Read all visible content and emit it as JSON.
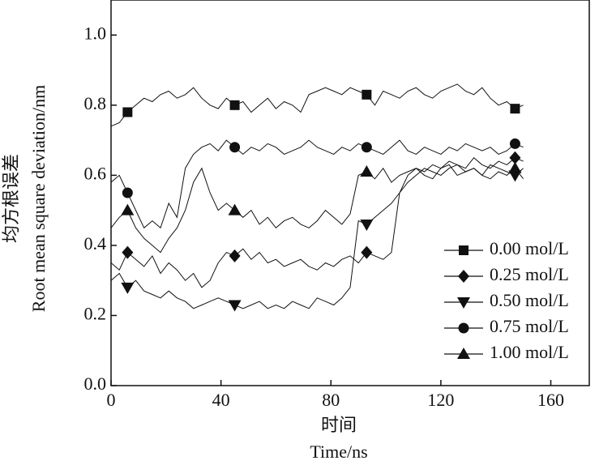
{
  "chart_data": {
    "type": "line",
    "x_label_cn": "时间",
    "x_label": "Time/ns",
    "y_label_cn": "均方根误差",
    "y_label": "Root mean square deviation/nm",
    "x": [
      0,
      3,
      6,
      9,
      12,
      15,
      18,
      21,
      24,
      27,
      30,
      33,
      36,
      39,
      42,
      45,
      48,
      51,
      54,
      57,
      60,
      63,
      66,
      69,
      72,
      75,
      78,
      81,
      84,
      87,
      90,
      93,
      96,
      99,
      102,
      105,
      108,
      111,
      114,
      117,
      120,
      123,
      126,
      129,
      132,
      135,
      138,
      141,
      144,
      147,
      150
    ],
    "xlim": [
      0,
      174
    ],
    "xticks": [
      0,
      40,
      80,
      120,
      160
    ],
    "ylim": [
      0,
      1.1
    ],
    "yticks": [
      {
        "value": 0,
        "label": "0.0"
      },
      {
        "value": 0.2,
        "label": "0.2"
      },
      {
        "value": 0.4,
        "label": "0.4"
      },
      {
        "value": 0.6,
        "label": "0.6"
      },
      {
        "value": 0.8,
        "label": "0.8"
      },
      {
        "value": 1.0,
        "label": "1.0"
      }
    ],
    "legend": "lower right",
    "series": [
      {
        "name": "0.00 mol/L",
        "color": "#111111",
        "marker": "square",
        "values": [
          0.74,
          0.75,
          0.78,
          0.8,
          0.82,
          0.81,
          0.83,
          0.84,
          0.82,
          0.83,
          0.85,
          0.82,
          0.8,
          0.79,
          0.82,
          0.8,
          0.81,
          0.78,
          0.8,
          0.82,
          0.79,
          0.81,
          0.8,
          0.78,
          0.83,
          0.84,
          0.85,
          0.84,
          0.83,
          0.85,
          0.84,
          0.83,
          0.8,
          0.84,
          0.83,
          0.82,
          0.84,
          0.85,
          0.83,
          0.82,
          0.84,
          0.85,
          0.86,
          0.84,
          0.83,
          0.85,
          0.82,
          0.8,
          0.81,
          0.79,
          0.8
        ]
      },
      {
        "name": "0.25 mol/L",
        "color": "#111111",
        "marker": "diamond",
        "values": [
          0.35,
          0.33,
          0.38,
          0.36,
          0.34,
          0.37,
          0.32,
          0.35,
          0.33,
          0.3,
          0.32,
          0.28,
          0.3,
          0.35,
          0.38,
          0.37,
          0.39,
          0.36,
          0.38,
          0.35,
          0.36,
          0.34,
          0.35,
          0.36,
          0.34,
          0.33,
          0.35,
          0.34,
          0.36,
          0.37,
          0.35,
          0.38,
          0.37,
          0.36,
          0.38,
          0.55,
          0.6,
          0.62,
          0.61,
          0.63,
          0.62,
          0.64,
          0.63,
          0.62,
          0.65,
          0.63,
          0.62,
          0.64,
          0.63,
          0.65,
          0.64
        ]
      },
      {
        "name": "0.50 mol/L",
        "color": "#111111",
        "marker": "triangle-down",
        "values": [
          0.3,
          0.32,
          0.28,
          0.3,
          0.27,
          0.26,
          0.25,
          0.27,
          0.25,
          0.24,
          0.22,
          0.23,
          0.24,
          0.25,
          0.24,
          0.23,
          0.22,
          0.23,
          0.24,
          0.22,
          0.23,
          0.22,
          0.24,
          0.23,
          0.22,
          0.25,
          0.24,
          0.23,
          0.25,
          0.28,
          0.47,
          0.46,
          0.48,
          0.5,
          0.52,
          0.55,
          0.58,
          0.6,
          0.62,
          0.61,
          0.6,
          0.62,
          0.63,
          0.61,
          0.62,
          0.6,
          0.63,
          0.62,
          0.61,
          0.6,
          0.62
        ]
      },
      {
        "name": "0.75 mol/L",
        "color": "#111111",
        "marker": "circle",
        "values": [
          0.58,
          0.6,
          0.55,
          0.5,
          0.45,
          0.47,
          0.45,
          0.52,
          0.48,
          0.62,
          0.66,
          0.68,
          0.69,
          0.67,
          0.7,
          0.68,
          0.66,
          0.68,
          0.67,
          0.69,
          0.68,
          0.66,
          0.67,
          0.68,
          0.7,
          0.68,
          0.67,
          0.66,
          0.68,
          0.67,
          0.69,
          0.68,
          0.67,
          0.66,
          0.68,
          0.7,
          0.67,
          0.66,
          0.68,
          0.67,
          0.66,
          0.68,
          0.67,
          0.69,
          0.68,
          0.67,
          0.68,
          0.66,
          0.67,
          0.69,
          0.68
        ]
      },
      {
        "name": "1.00 mol/L",
        "color": "#111111",
        "marker": "triangle-up",
        "values": [
          0.45,
          0.48,
          0.5,
          0.45,
          0.42,
          0.4,
          0.38,
          0.42,
          0.45,
          0.5,
          0.58,
          0.62,
          0.55,
          0.5,
          0.52,
          0.5,
          0.48,
          0.5,
          0.46,
          0.48,
          0.45,
          0.47,
          0.48,
          0.46,
          0.45,
          0.47,
          0.5,
          0.48,
          0.46,
          0.49,
          0.6,
          0.61,
          0.59,
          0.62,
          0.58,
          0.6,
          0.61,
          0.62,
          0.6,
          0.59,
          0.62,
          0.63,
          0.6,
          0.61,
          0.62,
          0.6,
          0.59,
          0.61,
          0.6,
          0.62,
          0.59
        ]
      }
    ]
  }
}
